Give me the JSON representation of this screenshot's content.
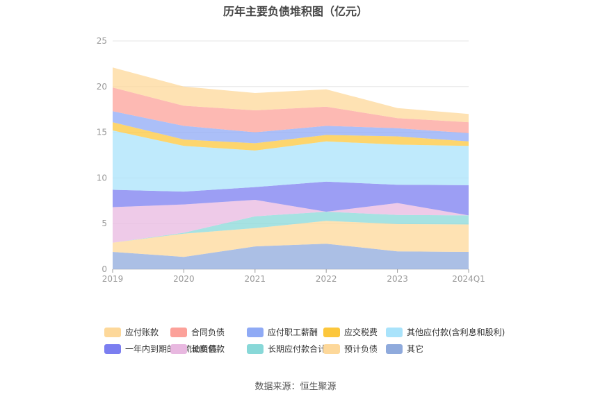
{
  "chart_data": {
    "type": "area",
    "stacked": true,
    "title": "历年主要负债堆积图（亿元）",
    "categories": [
      "2019",
      "2020",
      "2021",
      "2022",
      "2023",
      "2024Q1"
    ],
    "ylim": [
      0,
      25
    ],
    "yticks": [
      "0",
      "5",
      "10",
      "15",
      "20",
      "25"
    ],
    "grid": true,
    "legend_position": "bottom",
    "series": [
      {
        "name": "其它",
        "color": "#8faadc",
        "values": [
          1.9,
          1.35,
          2.5,
          2.8,
          1.95,
          1.9
        ]
      },
      {
        "name": "预计负债",
        "color": "#fdd89a",
        "values": [
          1.0,
          2.55,
          2.0,
          2.5,
          3.0,
          3.0
        ]
      },
      {
        "name": "长期应付款合计",
        "color": "#88d8d8",
        "values": [
          0.0,
          0.1,
          1.3,
          1.0,
          1.0,
          1.0
        ]
      },
      {
        "name": "长期借款",
        "color": "#e8b8e0",
        "values": [
          3.9,
          3.1,
          1.8,
          0.0,
          1.3,
          0.0
        ]
      },
      {
        "name": "一年内到期的非流动负债",
        "color": "#7b7ef0",
        "values": [
          1.9,
          1.4,
          1.4,
          3.3,
          2.0,
          3.3
        ]
      },
      {
        "name": "其他应付款(含利息和股利)",
        "color": "#a9e3fb",
        "values": [
          6.5,
          5.0,
          4.0,
          4.4,
          4.4,
          4.3
        ]
      },
      {
        "name": "应交税费",
        "color": "#fcc73c",
        "values": [
          0.9,
          0.7,
          0.8,
          0.7,
          0.9,
          0.5
        ]
      },
      {
        "name": "应付职工薪酬",
        "color": "#8faaf5",
        "values": [
          1.2,
          1.5,
          1.2,
          1.0,
          0.9,
          0.9
        ]
      },
      {
        "name": "合同负债",
        "color": "#fca19a",
        "values": [
          2.6,
          2.2,
          2.4,
          2.1,
          1.1,
          1.2
        ]
      },
      {
        "name": "应付账款",
        "color": "#fdd89a",
        "values": [
          2.2,
          2.1,
          1.9,
          1.9,
          1.1,
          0.9
        ]
      }
    ]
  },
  "legend_order": [
    {
      "name": "应付账款",
      "color": "#fdd89a"
    },
    {
      "name": "合同负债",
      "color": "#fca19a"
    },
    {
      "name": "应付职工薪酬",
      "color": "#8faaf5"
    },
    {
      "name": "应交税费",
      "color": "#fcc73c"
    },
    {
      "name": "其他应付款(含利息和股利)",
      "color": "#a9e3fb"
    },
    {
      "name": "一年内到期的非流动负债",
      "color": "#7b7ef0"
    },
    {
      "name": "长期借款",
      "color": "#e8b8e0"
    },
    {
      "name": "长期应付款合计",
      "color": "#88d8d8"
    },
    {
      "name": "预计负债",
      "color": "#fdd89a"
    },
    {
      "name": "其它",
      "color": "#8faadc"
    }
  ],
  "source": "数据来源：恒生聚源"
}
